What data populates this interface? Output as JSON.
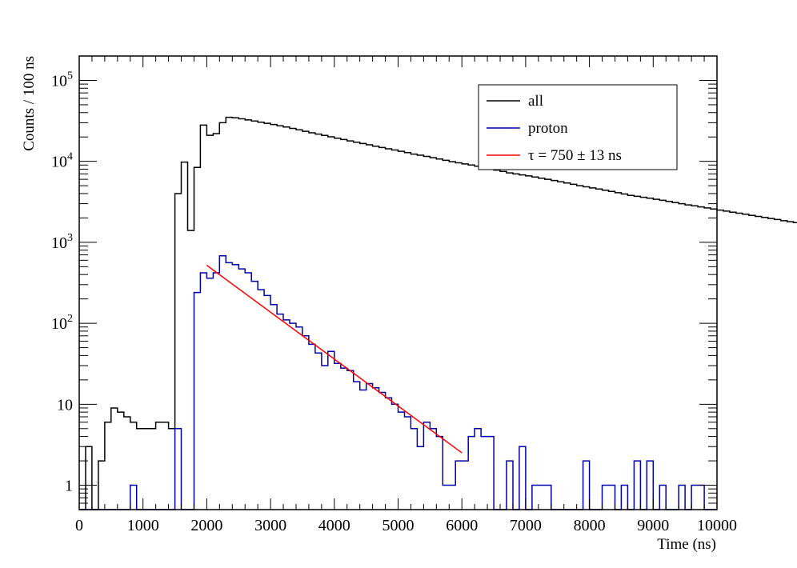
{
  "chart_data": {
    "type": "line",
    "title": "",
    "xlabel": "Time (ns)",
    "ylabel": "Counts / 100 ns",
    "xlim": [
      0,
      10000
    ],
    "ylim": [
      0.5,
      200000
    ],
    "y_scale": "log",
    "grid": false,
    "legend_position": "top-right",
    "x_ticks": [
      0,
      1000,
      2000,
      3000,
      4000,
      5000,
      6000,
      7000,
      8000,
      9000,
      10000
    ],
    "x_tick_labels": [
      "0",
      "1000",
      "2000",
      "3000",
      "4000",
      "5000",
      "6000",
      "7000",
      "8000",
      "9000",
      "10000"
    ],
    "y_ticks": [
      1,
      10,
      100,
      1000,
      10000,
      100000
    ],
    "y_tick_labels": [
      {
        "base": "1",
        "exp": ""
      },
      {
        "base": "10",
        "exp": ""
      },
      {
        "base": "10",
        "exp": "2"
      },
      {
        "base": "10",
        "exp": "3"
      },
      {
        "base": "10",
        "exp": "4"
      },
      {
        "base": "10",
        "exp": "5"
      }
    ],
    "bin_width": 100,
    "series": [
      {
        "name": "all",
        "color": "#000000",
        "style": "step",
        "x_start": 0,
        "values": [
          0,
          3,
          0,
          2,
          6,
          9,
          8,
          7,
          6,
          5,
          5,
          5,
          6,
          6,
          5,
          4000,
          9800,
          1400,
          8400,
          28000,
          21000,
          22000,
          30000,
          35000,
          34500,
          33500,
          32500,
          31500,
          30500,
          29500,
          28500,
          27500,
          26500,
          25500,
          24500,
          23500,
          22500,
          21700,
          20900,
          20100,
          19300,
          18600,
          17900,
          17200,
          16600,
          16000,
          15400,
          14800,
          14300,
          13800,
          13300,
          12800,
          12300,
          11900,
          11500,
          11100,
          10700,
          10300,
          9900,
          9600,
          9300,
          9000,
          8700,
          8400,
          8100,
          7800,
          7500,
          7200,
          7000,
          6800,
          6600,
          6400,
          6200,
          6000,
          5800,
          5600,
          5400,
          5200,
          5000,
          4850,
          4700,
          4550,
          4400,
          4250,
          4100,
          3950,
          3800,
          3700,
          3600,
          3500,
          3400,
          3300,
          3200,
          3100,
          3000,
          2900,
          2820,
          2740,
          2660,
          2580,
          2500,
          2430,
          2360,
          2290,
          2220,
          2150,
          2090,
          2030,
          1970,
          1910,
          1850,
          1800,
          1750,
          1700,
          1650,
          1600,
          1560,
          1520,
          1480,
          1440
        ]
      },
      {
        "name": "proton",
        "color": "#0000aa",
        "style": "step",
        "x_start": 0,
        "values": [
          0,
          0,
          0,
          0,
          0,
          0,
          0,
          0,
          1,
          0,
          0,
          0,
          0,
          0,
          0,
          5,
          0,
          0,
          240,
          420,
          360,
          420,
          680,
          560,
          530,
          470,
          420,
          330,
          260,
          220,
          170,
          130,
          110,
          100,
          90,
          70,
          55,
          43,
          30,
          45,
          32,
          28,
          26,
          19,
          15,
          18,
          16,
          14,
          12,
          10,
          8,
          7,
          5,
          3,
          6,
          5,
          4,
          1,
          1,
          2,
          2,
          4,
          5,
          4,
          4,
          0,
          0,
          2,
          0,
          3,
          0,
          1,
          1,
          1,
          0,
          0,
          0,
          0,
          0,
          2,
          0,
          0,
          1,
          1,
          0,
          1,
          0,
          2,
          0,
          2,
          0,
          1,
          0,
          0,
          1,
          0,
          1,
          1,
          0,
          0
        ]
      },
      {
        "name": "τ = 750 ± 13 ns",
        "color": "#ff0000",
        "style": "fit",
        "x_range": [
          2000,
          6000
        ],
        "y_at_start": 520,
        "tau_ns": 750
      }
    ],
    "legend": [
      {
        "label": "all",
        "color": "#000000"
      },
      {
        "label": "proton",
        "color": "#0000aa"
      },
      {
        "label": "τ = 750 ± 13 ns",
        "color": "#ff0000"
      }
    ]
  }
}
